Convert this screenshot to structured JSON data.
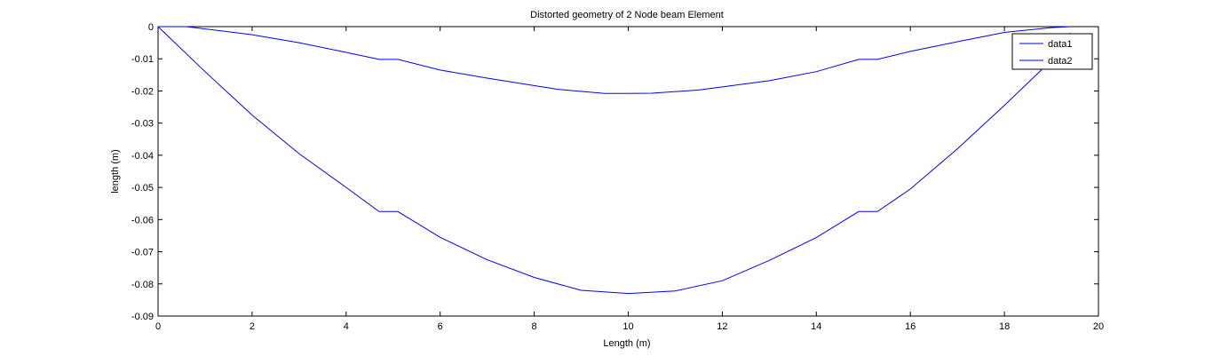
{
  "chart_data": {
    "type": "line",
    "title": "Distorted geometry of 2 Node beam Element",
    "xlabel": "Length (m)",
    "ylabel": "length (m)",
    "xlim": [
      0,
      20
    ],
    "ylim": [
      -0.09,
      0
    ],
    "xticks": [
      0,
      2,
      4,
      6,
      8,
      10,
      12,
      14,
      16,
      18,
      20
    ],
    "yticks": [
      0,
      -0.01,
      -0.02,
      -0.03,
      -0.04,
      -0.05,
      -0.06,
      -0.07,
      -0.08,
      -0.09
    ],
    "xtick_labels": [
      "0",
      "2",
      "4",
      "6",
      "8",
      "10",
      "12",
      "14",
      "16",
      "18",
      "20"
    ],
    "ytick_labels": [
      "0",
      "-0.01",
      "-0.02",
      "-0.03",
      "-0.04",
      "-0.05",
      "-0.06",
      "-0.07",
      "-0.08",
      "-0.09"
    ],
    "grid": false,
    "legend_position": "top-right",
    "line_color": "#0000ff",
    "series": [
      {
        "name": "data1",
        "x": [
          0,
          0.6,
          2,
          3,
          4,
          4.7,
          5.1,
          6,
          7,
          8.5,
          9.5,
          10,
          10.5,
          11.5,
          13,
          14,
          14.9,
          15.3,
          16,
          17,
          18,
          19,
          19.4
        ],
        "y": [
          0,
          0,
          -0.0025,
          -0.005,
          -0.008,
          -0.0102,
          -0.0102,
          -0.0135,
          -0.016,
          -0.0195,
          -0.0208,
          -0.0208,
          -0.0207,
          -0.0197,
          -0.0168,
          -0.014,
          -0.0102,
          -0.0102,
          -0.0077,
          -0.0047,
          -0.0018,
          -0.0003,
          0
        ]
      },
      {
        "name": "data2",
        "x": [
          0,
          1,
          2,
          3,
          4,
          4.7,
          5.1,
          6,
          7,
          8,
          9,
          10,
          11,
          12,
          13,
          14,
          14.9,
          15.3,
          16,
          17,
          18,
          19,
          19.4
        ],
        "y": [
          0,
          -0.014,
          -0.0275,
          -0.0395,
          -0.05,
          -0.0575,
          -0.0575,
          -0.0655,
          -0.0725,
          -0.078,
          -0.082,
          -0.083,
          -0.0822,
          -0.079,
          -0.0727,
          -0.0656,
          -0.0575,
          -0.0575,
          -0.0505,
          -0.038,
          -0.0245,
          -0.0105,
          -0.002
        ]
      }
    ]
  }
}
